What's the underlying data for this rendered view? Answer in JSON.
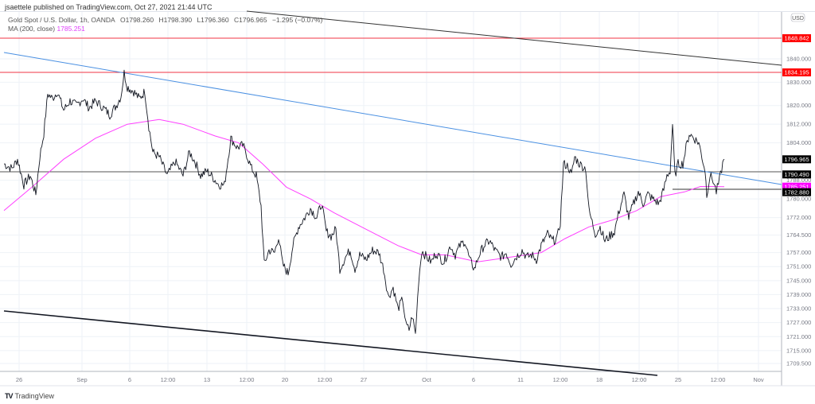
{
  "header": {
    "publisher_line": "jsaettele published on TradingView.com, Oct 27, 2021 21:44 UTC"
  },
  "legend": {
    "symbol": "Gold Spot / U.S. Dollar, 1h, OANDA",
    "open": "O1798.260",
    "high": "H1798.390",
    "low": "L1796.360",
    "close": "C1796.965",
    "change": "−1.295 (−0.07%)",
    "ma_label": "MA (200, close)",
    "ma_value": "1785.251"
  },
  "price_axis": {
    "currency": "USD",
    "ticks": [
      "1840.000",
      "1830.000",
      "1820.000",
      "1812.000",
      "1804.000",
      "1788.000",
      "1780.000",
      "1772.000",
      "1764.500",
      "1757.000",
      "1751.000",
      "1745.000",
      "1739.000",
      "1733.000",
      "1727.000",
      "1721.000",
      "1715.000",
      "1709.500"
    ],
    "labels": [
      {
        "value": "1848.842",
        "bg": "#ff0000",
        "fg": "#ffffff"
      },
      {
        "value": "1834.195",
        "bg": "#ff0000",
        "fg": "#ffffff"
      },
      {
        "value": "1796.965",
        "bg": "#000000",
        "fg": "#ffffff"
      },
      {
        "value": "1790.490",
        "bg": "#000000",
        "fg": "#ffffff"
      },
      {
        "value": "1785.251",
        "bg": "#ff00ff",
        "fg": "#ffffff"
      },
      {
        "value": "1782.880",
        "bg": "#000000",
        "fg": "#ffffff"
      }
    ]
  },
  "time_axis": {
    "ticks": [
      "26",
      "Sep",
      "6",
      "12:00",
      "13",
      "12:00",
      "20",
      "12:00",
      "27",
      "Oct",
      "6",
      "11",
      "12:00",
      "18",
      "12:00",
      "25",
      "12:00",
      "Nov"
    ]
  },
  "footer": {
    "logo_mark": "TV",
    "logo_text": "TradingView"
  },
  "colors": {
    "candles": "#131722",
    "ma": "#ff40ff",
    "trendline_blue": "#4a90e2",
    "resistance_red": "#f23645",
    "channel_black": "#131722",
    "grid": "#eef2f7"
  },
  "chart_data": {
    "type": "line",
    "title": "Gold Spot / U.S. Dollar, 1h, OANDA",
    "xlabel": "",
    "ylabel": "USD",
    "ylim": [
      1705,
      1858
    ],
    "x": [
      "Aug 26",
      "Sep 1",
      "Sep 6",
      "Sep 8",
      "Sep 13",
      "Sep 15",
      "Sep 20",
      "Sep 22",
      "Sep 27",
      "Oct 1",
      "Oct 6",
      "Oct 11",
      "Oct 13",
      "Oct 18",
      "Oct 20",
      "Oct 25",
      "Oct 27",
      "Nov 1"
    ],
    "series": [
      {
        "name": "XAUUSD close (approx.)",
        "values": [
          1792,
          1812,
          1832,
          1795,
          1790,
          1805,
          1750,
          1780,
          1745,
          1758,
          1752,
          1760,
          1797,
          1765,
          1776,
          1810,
          1797,
          null
        ]
      },
      {
        "name": "MA (200, close)",
        "values": [
          1785,
          1800,
          1810,
          1812,
          1810,
          1805,
          1785,
          1772,
          1760,
          1756,
          1753,
          1756,
          1760,
          1767,
          1773,
          1785,
          1785.251,
          null
        ]
      }
    ],
    "horizontal_levels": [
      {
        "name": "resistance",
        "value": 1848.842,
        "color": "#f23645"
      },
      {
        "name": "resistance",
        "value": 1834.195,
        "color": "#f23645"
      },
      {
        "name": "support",
        "value": 1790.49,
        "color": "#131722"
      },
      {
        "name": "support",
        "value": 1782.88,
        "color": "#131722"
      }
    ],
    "trendlines": [
      {
        "name": "descending blue trendline",
        "from": [
          "Aug 25",
          1843
        ],
        "to": [
          "Nov 2",
          1781
        ],
        "color": "#4a90e2"
      },
      {
        "name": "upper channel",
        "from": [
          "Sep 8",
          1858
        ],
        "to": [
          "Nov 2",
          1838
        ],
        "color": "#131722"
      },
      {
        "name": "lower channel",
        "from": [
          "Aug 25",
          1731
        ],
        "to": [
          "Oct 21",
          1706
        ],
        "color": "#131722"
      }
    ],
    "last_price": 1796.965,
    "grid": true,
    "legend_position": "top-left"
  }
}
